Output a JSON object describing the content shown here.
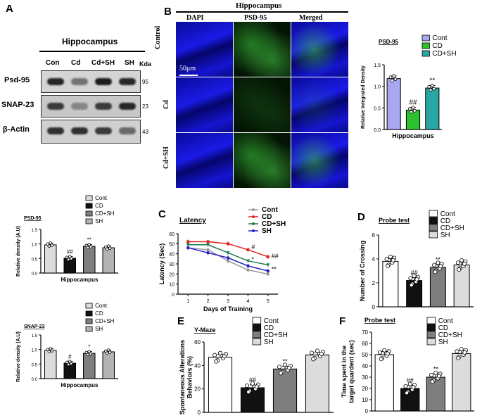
{
  "panels": {
    "A": "A",
    "B": "B",
    "C": "C",
    "D": "D",
    "E": "E",
    "F": "F"
  },
  "blot": {
    "header": "Hippocampus",
    "lanes": [
      "Con",
      "Cd",
      "Cd+SH",
      "SH"
    ],
    "kda_label": "Kda",
    "rows": [
      {
        "label": "Psd-95",
        "kda": "95",
        "band_intensity": [
          0.85,
          0.45,
          0.9,
          0.85
        ]
      },
      {
        "label": "SNAP-23",
        "kda": "23",
        "band_intensity": [
          0.75,
          0.35,
          0.75,
          0.85
        ]
      },
      {
        "label": "β-Actin",
        "kda": "43",
        "band_intensity": [
          0.8,
          0.8,
          0.75,
          0.5
        ]
      }
    ]
  },
  "micro": {
    "header": "Hippocampus",
    "columns": [
      "DAPI",
      "PSD-95",
      "Merged"
    ],
    "rows": [
      "Control",
      "Cd",
      "Cd+SH"
    ],
    "scale_bar": "50μm"
  },
  "chart_data": [
    {
      "id": "psd95-if",
      "type": "bar",
      "title": "PSD-95",
      "xlabel": "Hippocampus",
      "ylabel": "Relative Integrated Density",
      "ylim": [
        0,
        1.5
      ],
      "yticks": [
        "0.0",
        "0.5",
        "1.0",
        "1.5"
      ],
      "categories": [
        "Cont",
        "CD",
        "CD+SH"
      ],
      "values": [
        1.18,
        0.45,
        0.96
      ],
      "colors": [
        "#a7a7f2",
        "#2dc12d",
        "#2aa7a4"
      ],
      "sig": [
        "",
        "##",
        "**"
      ],
      "legend": [
        "Cont",
        "CD",
        "CD+SH"
      ]
    },
    {
      "id": "psd95-wb",
      "type": "bar",
      "title": "PSD-95",
      "xlabel": "Hippocampus",
      "ylabel": "Relative density (A.U)",
      "ylim": [
        0,
        1.5
      ],
      "yticks": [
        "0.0",
        "0.5",
        "1.0",
        "1.5"
      ],
      "categories": [
        "Cont",
        "CD",
        "CD+SH",
        "SH"
      ],
      "values": [
        0.97,
        0.51,
        0.92,
        0.87
      ],
      "colors": [
        "#dcdcdc",
        "#111111",
        "#7e7e7e",
        "#b3b3b3"
      ],
      "sig": [
        "",
        "##",
        "**",
        ""
      ],
      "legend": [
        "Cont",
        "CD",
        "CD+SH",
        "SH"
      ]
    },
    {
      "id": "snap23-wb",
      "type": "bar",
      "title": "SNAP-23",
      "xlabel": "Hippocampus",
      "ylabel": "Relative density (A.U)",
      "ylim": [
        0,
        1.5
      ],
      "yticks": [
        "0.0",
        "0.5",
        "1.0",
        "1.5"
      ],
      "categories": [
        "Cont",
        "CD",
        "CD+SH",
        "SH"
      ],
      "values": [
        0.97,
        0.53,
        0.87,
        0.92
      ],
      "colors": [
        "#dcdcdc",
        "#111111",
        "#7e7e7e",
        "#b3b3b3"
      ],
      "sig": [
        "",
        "#",
        "*",
        ""
      ],
      "legend": [
        "Cont",
        "CD",
        "CD+SH",
        "SH"
      ]
    },
    {
      "id": "latency",
      "type": "line",
      "title": "Latency",
      "xlabel": "Days of Training",
      "ylabel": "Latency (Sec)",
      "x": [
        1,
        2,
        3,
        4,
        5
      ],
      "xlim": [
        0.5,
        5.5
      ],
      "ylim": [
        0,
        60
      ],
      "yticks": [
        "0",
        "10",
        "20",
        "30",
        "40",
        "50",
        "60"
      ],
      "series": [
        {
          "name": "Cont",
          "color": "#9a9a9a",
          "values": [
            46,
            44,
            33,
            24,
            20
          ]
        },
        {
          "name": "CD",
          "color": "#e2231a",
          "values": [
            52,
            52,
            50,
            44,
            37
          ]
        },
        {
          "name": "CD+SH",
          "color": "#1a7a4a",
          "values": [
            49,
            49,
            41,
            33,
            29
          ]
        },
        {
          "name": "SH",
          "color": "#2222c8",
          "values": [
            46,
            41,
            36,
            28,
            23
          ]
        }
      ],
      "annotations": [
        {
          "x": 4,
          "y": 46,
          "text": "#"
        },
        {
          "x": 4,
          "y": 34,
          "text": "*"
        },
        {
          "x": 5,
          "y": 37,
          "text": "##"
        },
        {
          "x": 5,
          "y": 24,
          "text": "**"
        }
      ]
    },
    {
      "id": "probe-crossing",
      "type": "bar",
      "title": "Probe test",
      "ylabel": "Number of Crossing",
      "ylim": [
        0,
        6
      ],
      "yticks": [
        "0",
        "2",
        "4",
        "6"
      ],
      "categories": [
        "Cont",
        "CD",
        "CD+SH",
        "SH"
      ],
      "values": [
        3.8,
        2.2,
        3.3,
        3.5
      ],
      "colors": [
        "#ffffff",
        "#111111",
        "#7e7e7e",
        "#dcdcdc"
      ],
      "sig": [
        "",
        "##",
        "**",
        ""
      ],
      "legend": [
        "Cont",
        "CD",
        "CD+SH",
        "SH"
      ]
    },
    {
      "id": "ymaze",
      "type": "bar",
      "title": "Y-Maze",
      "ylabel": "Spontaneous Alterations Behaviors (%)",
      "ylim": [
        0,
        60
      ],
      "yticks": [
        "0",
        "20",
        "40",
        "60"
      ],
      "categories": [
        "Cont",
        "CD",
        "CD+SH",
        "SH"
      ],
      "values": [
        47,
        21,
        37,
        49
      ],
      "colors": [
        "#ffffff",
        "#111111",
        "#7e7e7e",
        "#dcdcdc"
      ],
      "sig": [
        "",
        "##",
        "**",
        ""
      ],
      "legend": [
        "Cont",
        "CD",
        "CD+SH",
        "SH"
      ]
    },
    {
      "id": "probe-time",
      "type": "bar",
      "title": "Probe test",
      "ylabel": "Time spent in the target quardent (sec)",
      "ylim": [
        0,
        70
      ],
      "yticks": [
        "0",
        "10",
        "20",
        "30",
        "40",
        "50",
        "60",
        "70"
      ],
      "categories": [
        "Cont",
        "CD",
        "CD+SH",
        "SH"
      ],
      "values": [
        50,
        20,
        30,
        51
      ],
      "colors": [
        "#ffffff",
        "#111111",
        "#7e7e7e",
        "#dcdcdc"
      ],
      "sig": [
        "",
        "##",
        "**",
        ""
      ],
      "legend": [
        "Cont",
        "CD",
        "CD+SH",
        "SH"
      ]
    }
  ]
}
